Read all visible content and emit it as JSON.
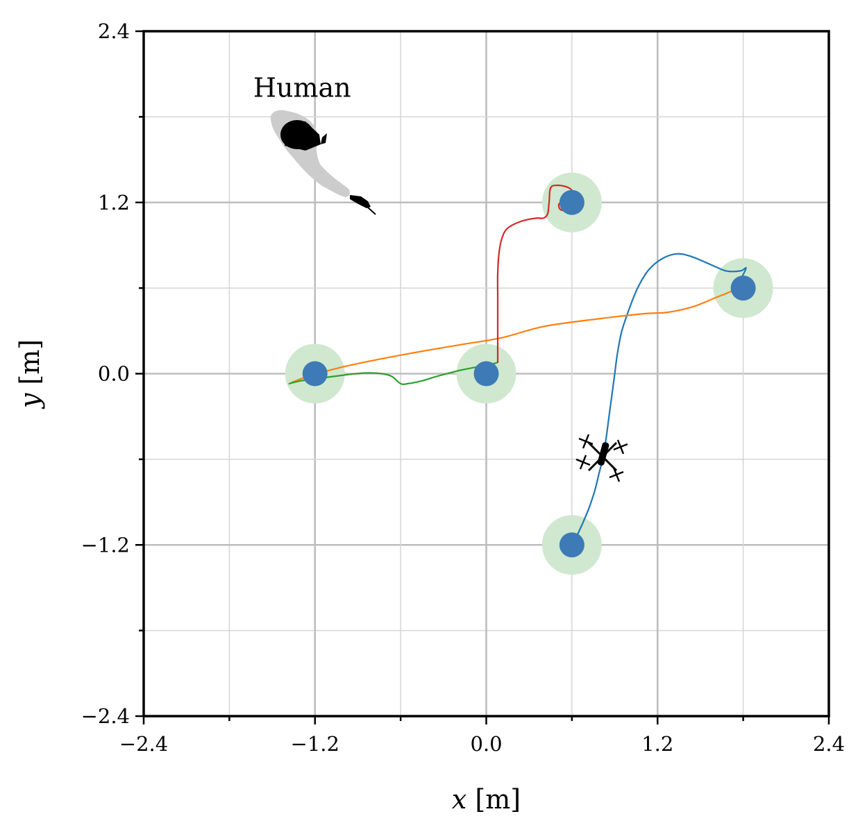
{
  "chart_data": {
    "type": "scatter",
    "xlabel": "x [m]",
    "ylabel": "y [m]",
    "xlim": [
      -2.4,
      2.4
    ],
    "ylim": [
      -2.4,
      2.4
    ],
    "xticks": [
      -2.4,
      -1.2,
      0.0,
      1.2,
      2.4
    ],
    "yticks": [
      -2.4,
      -1.2,
      0.0,
      1.2,
      2.4
    ],
    "xtick_labels": [
      "−2.4",
      "−1.2",
      "0.0",
      "1.2",
      "2.4"
    ],
    "ytick_labels": [
      "−2.4",
      "−1.2",
      "0.0",
      "1.2",
      "2.4"
    ],
    "grid": true,
    "grid_minor_step": 0.6,
    "annotations": [
      {
        "text": "Human",
        "x": -1.29,
        "y": 2.0
      }
    ],
    "colors": {
      "waypoint": "#3d7ab6",
      "waypoint_halo": "#cfe8cf",
      "human_shadow": "#cccccc",
      "human": "#000000",
      "drone": "#000000",
      "grid": "#c4c4c4"
    },
    "waypoints": [
      {
        "x": -1.2,
        "y": 0.0
      },
      {
        "x": 0.0,
        "y": 0.0
      },
      {
        "x": 0.6,
        "y": 1.2
      },
      {
        "x": 1.8,
        "y": 0.6
      },
      {
        "x": 0.6,
        "y": -1.2
      }
    ],
    "series": [
      {
        "color": "#1f77b4",
        "points": [
          [
            0.59,
            -1.25
          ],
          [
            0.62,
            -1.17
          ],
          [
            0.67,
            -1.06
          ],
          [
            0.72,
            -0.94
          ],
          [
            0.76,
            -0.82
          ],
          [
            0.79,
            -0.7
          ],
          [
            0.82,
            -0.58
          ],
          [
            0.84,
            -0.45
          ],
          [
            0.86,
            -0.3
          ],
          [
            0.88,
            -0.15
          ],
          [
            0.9,
            0.0
          ],
          [
            0.92,
            0.15
          ],
          [
            0.95,
            0.3
          ],
          [
            1.0,
            0.45
          ],
          [
            1.06,
            0.6
          ],
          [
            1.14,
            0.73
          ],
          [
            1.24,
            0.81
          ],
          [
            1.34,
            0.84
          ],
          [
            1.44,
            0.82
          ],
          [
            1.56,
            0.77
          ],
          [
            1.68,
            0.72
          ],
          [
            1.78,
            0.72
          ],
          [
            1.82,
            0.74
          ],
          [
            1.78,
            0.66
          ],
          [
            1.74,
            0.61
          ]
        ]
      },
      {
        "color": "#ff7f0e",
        "points": [
          [
            -1.36,
            -0.06
          ],
          [
            -1.28,
            -0.03
          ],
          [
            -1.15,
            0.01
          ],
          [
            -0.95,
            0.06
          ],
          [
            -0.6,
            0.13
          ],
          [
            -0.2,
            0.2
          ],
          [
            0.1,
            0.25
          ],
          [
            0.4,
            0.33
          ],
          [
            0.75,
            0.38
          ],
          [
            1.1,
            0.42
          ],
          [
            1.27,
            0.43
          ],
          [
            1.45,
            0.47
          ],
          [
            1.6,
            0.53
          ],
          [
            1.7,
            0.57
          ],
          [
            1.76,
            0.6
          ]
        ]
      },
      {
        "color": "#2ca02c",
        "points": [
          [
            -1.38,
            -0.07
          ],
          [
            -1.3,
            -0.05
          ],
          [
            -1.15,
            -0.03
          ],
          [
            -1.0,
            -0.01
          ],
          [
            -0.85,
            0.005
          ],
          [
            -0.73,
            0.0
          ],
          [
            -0.66,
            -0.02
          ],
          [
            -0.6,
            -0.07
          ],
          [
            -0.55,
            -0.07
          ],
          [
            -0.45,
            -0.05
          ],
          [
            -0.35,
            -0.02
          ],
          [
            -0.2,
            0.02
          ],
          [
            -0.05,
            0.05
          ],
          [
            0.05,
            0.07
          ],
          [
            0.08,
            0.08
          ]
        ]
      },
      {
        "color": "#d62728",
        "points": [
          [
            0.08,
            0.08
          ],
          [
            0.08,
            0.22
          ],
          [
            0.08,
            0.4
          ],
          [
            0.08,
            0.55
          ],
          [
            0.08,
            0.7
          ],
          [
            0.09,
            0.85
          ],
          [
            0.11,
            0.95
          ],
          [
            0.15,
            1.02
          ],
          [
            0.25,
            1.07
          ],
          [
            0.35,
            1.09
          ],
          [
            0.4,
            1.09
          ],
          [
            0.43,
            1.12
          ],
          [
            0.44,
            1.2
          ],
          [
            0.45,
            1.3
          ],
          [
            0.49,
            1.32
          ],
          [
            0.56,
            1.31
          ],
          [
            0.6,
            1.28
          ],
          [
            0.56,
            1.23
          ],
          [
            0.51,
            1.19
          ],
          [
            0.52,
            1.15
          ],
          [
            0.56,
            1.15
          ],
          [
            0.6,
            1.2
          ]
        ]
      }
    ]
  }
}
